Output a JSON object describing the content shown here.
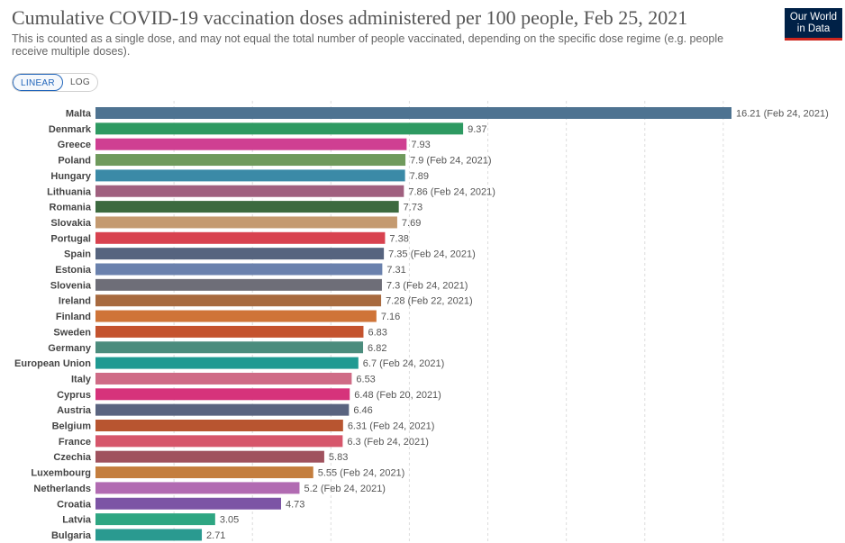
{
  "header": {
    "title": "Cumulative COVID-19 vaccination doses administered per 100 people, Feb 25, 2021",
    "subtitle": "This is counted as a single dose, and may not equal the total number of people vaccinated, depending on the specific dose regime (e.g. people receive multiple doses).",
    "logo_line1": "Our World",
    "logo_line2": "in Data"
  },
  "scale_toggle": {
    "linear_label": "LINEAR",
    "log_label": "LOG",
    "selected": "LINEAR"
  },
  "colors": {
    "logo_bg": "#002147",
    "logo_accent": "#ce261e",
    "grid": "#dddddd"
  },
  "chart_data": {
    "type": "bar",
    "orientation": "horizontal",
    "grid": true,
    "xlim": [
      0,
      16.21
    ],
    "categories": [
      "Malta",
      "Denmark",
      "Greece",
      "Poland",
      "Hungary",
      "Lithuania",
      "Romania",
      "Slovakia",
      "Portugal",
      "Spain",
      "Estonia",
      "Slovenia",
      "Ireland",
      "Finland",
      "Sweden",
      "Germany",
      "European Union",
      "Italy",
      "Cyprus",
      "Austria",
      "Belgium",
      "France",
      "Czechia",
      "Luxembourg",
      "Netherlands",
      "Croatia",
      "Latvia",
      "Bulgaria"
    ],
    "values": [
      16.21,
      9.37,
      7.93,
      7.9,
      7.89,
      7.86,
      7.73,
      7.69,
      7.38,
      7.35,
      7.31,
      7.3,
      7.28,
      7.16,
      6.83,
      6.82,
      6.7,
      6.53,
      6.48,
      6.46,
      6.31,
      6.3,
      5.83,
      5.55,
      5.2,
      4.73,
      3.05,
      2.71
    ],
    "value_labels": [
      "16.21 (Feb 24, 2021)",
      "9.37",
      "7.93",
      "7.9 (Feb 24, 2021)",
      "7.89",
      "7.86 (Feb 24, 2021)",
      "7.73",
      "7.69",
      "7.38",
      "7.35 (Feb 24, 2021)",
      "7.31",
      "7.3 (Feb 24, 2021)",
      "7.28 (Feb 22, 2021)",
      "7.16",
      "6.83",
      "6.82",
      "6.7 (Feb 24, 2021)",
      "6.53",
      "6.48 (Feb 20, 2021)",
      "6.46",
      "6.31 (Feb 24, 2021)",
      "6.3 (Feb 24, 2021)",
      "5.83",
      "5.55 (Feb 24, 2021)",
      "5.2 (Feb 24, 2021)",
      "4.73",
      "3.05",
      "2.71"
    ],
    "bar_colors": [
      "#4e7391",
      "#2e9a62",
      "#cf3f92",
      "#6f9a5c",
      "#3b8aa7",
      "#a0607f",
      "#3c6a3f",
      "#c49a70",
      "#d8424f",
      "#56647f",
      "#6a81ad",
      "#6e6e78",
      "#a86a3f",
      "#cf7438",
      "#c4532e",
      "#4b8c7d",
      "#1f9a92",
      "#cf6b86",
      "#d6337b",
      "#5a6480",
      "#b85530",
      "#d6566b",
      "#a0525e",
      "#c47e3e",
      "#b16bb2",
      "#7c54a5",
      "#2ea682",
      "#2a9a90"
    ]
  }
}
